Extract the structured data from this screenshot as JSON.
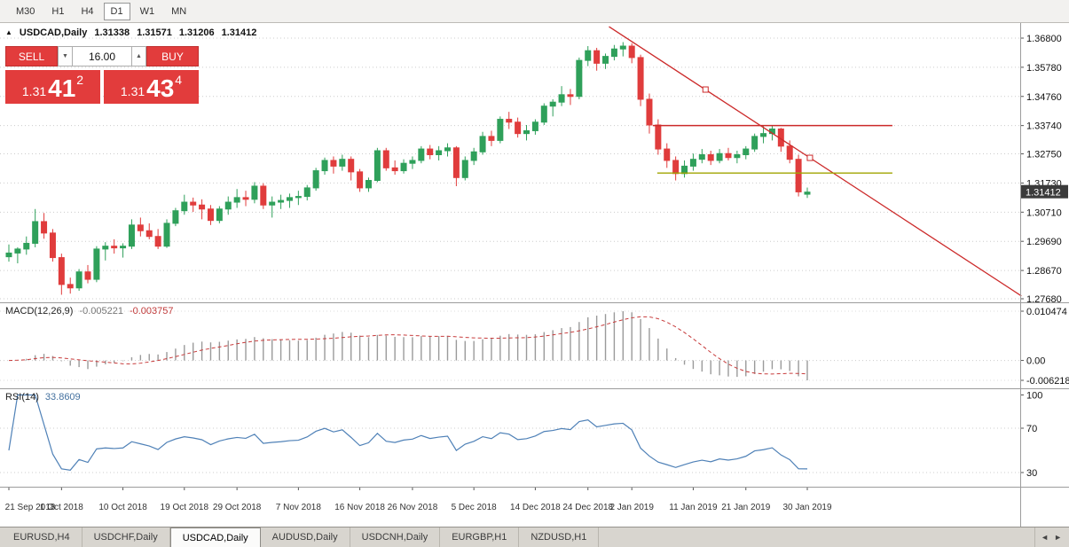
{
  "ui": {
    "timeframe_bar": {
      "items": [
        {
          "label": "M30"
        },
        {
          "label": "H1"
        },
        {
          "label": "H4"
        },
        {
          "label": "D1"
        },
        {
          "label": "W1"
        },
        {
          "label": "MN"
        }
      ],
      "active": "D1"
    },
    "symbol_header": {
      "marker": "▲",
      "title": "USDCAD,Daily",
      "open": "1.31338",
      "high": "1.31571",
      "low": "1.31206",
      "close": "1.31412"
    },
    "trade_widget": {
      "sell_label": "SELL",
      "buy_label": "BUY",
      "volume": "16.00",
      "down_glyph": "▼",
      "up_glyph": "▲",
      "sell_price": {
        "prefix": "1.31",
        "big": "41",
        "sup": "2"
      },
      "buy_price": {
        "prefix": "1.31",
        "big": "43",
        "sup": "4"
      }
    },
    "macd_header": {
      "label": "MACD(12,26,9)",
      "value_main": "-0.005221",
      "value_signal": "-0.003757"
    },
    "rsi_header": {
      "label": "RSI(14)",
      "value": "33.8609"
    },
    "bottom_tabs": {
      "items": [
        {
          "label": "EURUSD,H4"
        },
        {
          "label": "USDCHF,Daily"
        },
        {
          "label": "USDCAD,Daily"
        },
        {
          "label": "AUDUSD,Daily"
        },
        {
          "label": "USDCNH,Daily"
        },
        {
          "label": "EURGBP,H1"
        },
        {
          "label": "NZDUSD,H1"
        }
      ],
      "active": "USDCAD,Daily",
      "scroll_left": "◄",
      "scroll_right": "►"
    }
  },
  "chart_data": {
    "type": "candlestick",
    "symbol": "USDCAD",
    "timeframe": "Daily",
    "colors": {
      "up": "#2fa05a",
      "down": "#e03c3c",
      "trend": "#cc2a2a",
      "resistance": "#cc2a2a",
      "support": "#a0a400",
      "macd_hist": "#9a9a9a",
      "macd_signal": "#c73b3b",
      "rsi": "#4f81b7",
      "grid": "#cccccc",
      "axis": "#555555",
      "tag_bg": "#3b3b3b"
    },
    "price_axis_labels": [
      "1.36800",
      "1.35780",
      "1.34760",
      "1.33740",
      "1.32750",
      "1.31730",
      "1.30710",
      "1.29690",
      "1.28670",
      "1.27680"
    ],
    "current_price": 1.31412,
    "current_price_label": "1.31412",
    "candles": [
      [
        1.2915,
        1.2958,
        1.2898,
        1.2928
      ],
      [
        1.2928,
        1.2948,
        1.2892,
        1.2942
      ],
      [
        1.2942,
        1.2986,
        1.2922,
        1.2962
      ],
      [
        1.2962,
        1.3082,
        1.2948,
        1.3038
      ],
      [
        1.3038,
        1.3068,
        1.2978,
        1.2998
      ],
      [
        1.2998,
        1.3012,
        1.2898,
        1.2912
      ],
      [
        1.2912,
        1.2926,
        1.2782,
        1.2818
      ],
      [
        1.2818,
        1.2842,
        1.2786,
        1.2806
      ],
      [
        1.2806,
        1.2872,
        1.2796,
        1.2862
      ],
      [
        1.2862,
        1.2886,
        1.2822,
        1.2836
      ],
      [
        1.2836,
        1.2952,
        1.2826,
        1.2942
      ],
      [
        1.2942,
        1.2966,
        1.2902,
        1.2952
      ],
      [
        1.2952,
        1.2976,
        1.2926,
        1.2946
      ],
      [
        1.2946,
        1.2962,
        1.2912,
        1.2952
      ],
      [
        1.2952,
        1.3046,
        1.2942,
        1.3026
      ],
      [
        1.3026,
        1.3052,
        1.2986,
        1.3006
      ],
      [
        1.3006,
        1.3032,
        1.2976,
        1.2986
      ],
      [
        1.2986,
        1.3012,
        1.2942,
        1.2952
      ],
      [
        1.2952,
        1.3046,
        1.2946,
        1.3032
      ],
      [
        1.3032,
        1.3086,
        1.3022,
        1.3076
      ],
      [
        1.3076,
        1.3132,
        1.3062,
        1.3106
      ],
      [
        1.3106,
        1.3122,
        1.3072,
        1.3096
      ],
      [
        1.3096,
        1.3116,
        1.3046,
        1.3082
      ],
      [
        1.3082,
        1.3096,
        1.3026,
        1.3042
      ],
      [
        1.3042,
        1.3092,
        1.3032,
        1.3082
      ],
      [
        1.3082,
        1.3126,
        1.3062,
        1.3106
      ],
      [
        1.3106,
        1.3152,
        1.3086,
        1.3122
      ],
      [
        1.3122,
        1.3146,
        1.3092,
        1.3116
      ],
      [
        1.3116,
        1.3176,
        1.3102,
        1.3162
      ],
      [
        1.3162,
        1.3172,
        1.3082,
        1.3096
      ],
      [
        1.3096,
        1.3126,
        1.3052,
        1.3106
      ],
      [
        1.3106,
        1.3132,
        1.3082,
        1.3112
      ],
      [
        1.3112,
        1.3136,
        1.3086,
        1.3122
      ],
      [
        1.3122,
        1.3146,
        1.3096,
        1.3126
      ],
      [
        1.3126,
        1.3166,
        1.3112,
        1.3156
      ],
      [
        1.3156,
        1.3226,
        1.3146,
        1.3216
      ],
      [
        1.3216,
        1.3262,
        1.3202,
        1.3252
      ],
      [
        1.3252,
        1.3266,
        1.3206,
        1.3232
      ],
      [
        1.3232,
        1.3272,
        1.3216,
        1.3256
      ],
      [
        1.3256,
        1.3266,
        1.3182,
        1.3212
      ],
      [
        1.3212,
        1.3222,
        1.3142,
        1.3156
      ],
      [
        1.3156,
        1.3192,
        1.3142,
        1.3182
      ],
      [
        1.3182,
        1.3296,
        1.3176,
        1.3286
      ],
      [
        1.3286,
        1.3296,
        1.3216,
        1.3226
      ],
      [
        1.3226,
        1.3252,
        1.3202,
        1.3216
      ],
      [
        1.3216,
        1.3256,
        1.3206,
        1.3242
      ],
      [
        1.3242,
        1.3266,
        1.3222,
        1.3252
      ],
      [
        1.3252,
        1.3302,
        1.3242,
        1.3292
      ],
      [
        1.3292,
        1.3306,
        1.3256,
        1.3272
      ],
      [
        1.3272,
        1.3302,
        1.3252,
        1.3286
      ],
      [
        1.3286,
        1.3312,
        1.3266,
        1.3296
      ],
      [
        1.3296,
        1.3302,
        1.3162,
        1.3192
      ],
      [
        1.3192,
        1.3266,
        1.3182,
        1.3252
      ],
      [
        1.3252,
        1.3296,
        1.3236,
        1.3282
      ],
      [
        1.3282,
        1.3352,
        1.3272,
        1.3336
      ],
      [
        1.3336,
        1.3356,
        1.3302,
        1.3322
      ],
      [
        1.3322,
        1.3406,
        1.3312,
        1.3396
      ],
      [
        1.3396,
        1.3422,
        1.3362,
        1.3386
      ],
      [
        1.3386,
        1.3402,
        1.3332,
        1.3346
      ],
      [
        1.3346,
        1.3376,
        1.3322,
        1.3356
      ],
      [
        1.3356,
        1.3396,
        1.3342,
        1.3386
      ],
      [
        1.3386,
        1.3452,
        1.3376,
        1.3442
      ],
      [
        1.3442,
        1.3466,
        1.3406,
        1.3456
      ],
      [
        1.3456,
        1.3512,
        1.3442,
        1.3482
      ],
      [
        1.3482,
        1.3502,
        1.3446,
        1.3476
      ],
      [
        1.3476,
        1.3612,
        1.3466,
        1.3602
      ],
      [
        1.3602,
        1.3652,
        1.3582,
        1.3636
      ],
      [
        1.3636,
        1.3646,
        1.3566,
        1.3592
      ],
      [
        1.3592,
        1.3626,
        1.3572,
        1.3616
      ],
      [
        1.3616,
        1.3656,
        1.3602,
        1.3642
      ],
      [
        1.3642,
        1.3666,
        1.3616,
        1.3652
      ],
      [
        1.3652,
        1.3662,
        1.3592,
        1.3612
      ],
      [
        1.3612,
        1.3622,
        1.3442,
        1.3466
      ],
      [
        1.3466,
        1.3486,
        1.3346,
        1.3376
      ],
      [
        1.3376,
        1.3396,
        1.3272,
        1.3292
      ],
      [
        1.3292,
        1.3312,
        1.3226,
        1.3252
      ],
      [
        1.3252,
        1.3266,
        1.3182,
        1.3206
      ],
      [
        1.3206,
        1.3252,
        1.3192,
        1.3232
      ],
      [
        1.3232,
        1.3276,
        1.3216,
        1.3256
      ],
      [
        1.3256,
        1.3292,
        1.3242,
        1.3272
      ],
      [
        1.3272,
        1.3286,
        1.3236,
        1.3252
      ],
      [
        1.3252,
        1.3292,
        1.3242,
        1.3276
      ],
      [
        1.3276,
        1.3296,
        1.3252,
        1.3262
      ],
      [
        1.3262,
        1.3286,
        1.3242,
        1.3272
      ],
      [
        1.3272,
        1.3302,
        1.3256,
        1.3292
      ],
      [
        1.3292,
        1.3346,
        1.3282,
        1.3336
      ],
      [
        1.3336,
        1.3372,
        1.3312,
        1.3346
      ],
      [
        1.3346,
        1.3376,
        1.3322,
        1.3362
      ],
      [
        1.3362,
        1.3366,
        1.3282,
        1.3302
      ],
      [
        1.3302,
        1.3322,
        1.3242,
        1.3256
      ],
      [
        1.3256,
        1.3272,
        1.3126,
        1.3142
      ],
      [
        1.31338,
        1.31571,
        1.31206,
        1.31412
      ]
    ],
    "x_ticks": [
      {
        "label": "21 Sep 2018",
        "index": 0
      },
      {
        "label": "1 Oct 2018",
        "index": 6
      },
      {
        "label": "10 Oct 2018",
        "index": 13
      },
      {
        "label": "19 Oct 2018",
        "index": 20
      },
      {
        "label": "29 Oct 2018",
        "index": 26
      },
      {
        "label": "7 Nov 2018",
        "index": 33
      },
      {
        "label": "16 Nov 2018",
        "index": 40
      },
      {
        "label": "26 Nov 2018",
        "index": 46
      },
      {
        "label": "5 Dec 2018",
        "index": 53
      },
      {
        "label": "14 Dec 2018",
        "index": 60
      },
      {
        "label": "24 Dec 2018",
        "index": 66
      },
      {
        "label": "2 Jan 2019",
        "index": 71
      },
      {
        "label": "11 Jan 2019",
        "index": 78
      },
      {
        "label": "21 Jan 2019",
        "index": 84
      },
      {
        "label": "30 Jan 2019",
        "index": 91
      }
    ],
    "overlays": {
      "trendline": {
        "name": "descending-trendline",
        "points": [
          {
            "index": 68.4,
            "price": 1.372
          },
          {
            "index": 115.4,
            "price": 1.2778
          }
        ],
        "markers": [
          {
            "index": 79.4,
            "price": 1.35
          },
          {
            "index": 91.3,
            "price": 1.3261
          }
        ]
      },
      "hlines": [
        {
          "name": "resistance-line",
          "price": 1.3374,
          "from": 73.4,
          "to": 100.7
        },
        {
          "name": "support-line",
          "price": 1.3208,
          "from": 73.9,
          "to": 100.7
        }
      ]
    },
    "macd": {
      "params": [
        12,
        26,
        9
      ],
      "axis_labels": [
        "0.010474",
        "0.00",
        "-0.006218"
      ]
    },
    "rsi": {
      "period": 14,
      "levels": [
        100,
        70,
        30
      ],
      "axis_labels": [
        "100",
        "70",
        "30"
      ]
    }
  }
}
